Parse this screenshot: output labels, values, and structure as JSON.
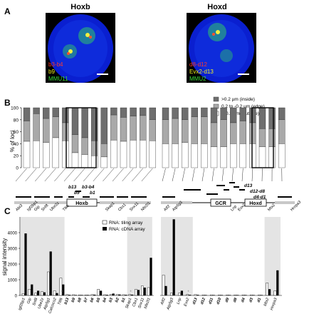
{
  "panel_a": {
    "label": "A",
    "left": {
      "title": "Hoxb",
      "probe1": "b3-b4",
      "probe2": "b9",
      "probe3": "MMU11",
      "colors": {
        "probe1": "#ff3b2a",
        "probe2": "#f2f020",
        "probe3": "#3cdc3c"
      }
    },
    "right": {
      "title": "Hoxd",
      "probe1": "d8-d12",
      "probe2": "Evx2-d13",
      "probe3": "MMU2",
      "colors": {
        "probe1": "#ff3b2a",
        "probe2": "#f2f020",
        "probe3": "#3cdc3c"
      }
    }
  },
  "panel_b": {
    "label": "B",
    "ylabel": "% of loci",
    "ticks": [
      "0",
      "20",
      "40",
      "60",
      "80",
      "100"
    ],
    "legend": [
      ">0.2 µm (inside)",
      "0.2 to -0.2 µm (edge)",
      "<-0.2 µm (outside)"
    ],
    "colors": {
      "inside": "#6e6e6e",
      "edge": "#a9a9a9",
      "outside": "#ffffff"
    },
    "left_stacks": [
      [
        22,
        34,
        44
      ],
      [
        10,
        45,
        45
      ],
      [
        18,
        40,
        42
      ],
      [
        15,
        35,
        50
      ],
      [
        25,
        30,
        45
      ],
      [
        45,
        30,
        25
      ],
      [
        50,
        28,
        22
      ],
      [
        55,
        25,
        20
      ],
      [
        60,
        22,
        18
      ],
      [
        12,
        42,
        46
      ],
      [
        16,
        40,
        44
      ],
      [
        14,
        40,
        46
      ],
      [
        13,
        41,
        46
      ],
      [
        20,
        35,
        45
      ]
    ],
    "right_stacks": [
      [
        20,
        40,
        40
      ],
      [
        18,
        42,
        40
      ],
      [
        20,
        38,
        42
      ],
      [
        15,
        45,
        40
      ],
      [
        15,
        45,
        40
      ],
      [
        25,
        40,
        35
      ],
      [
        20,
        45,
        35
      ],
      [
        25,
        35,
        40
      ],
      [
        22,
        38,
        40
      ],
      [
        25,
        35,
        40
      ],
      [
        35,
        30,
        35
      ],
      [
        35,
        30,
        35
      ],
      [
        20,
        40,
        40
      ]
    ],
    "left_probes": [
      "b13",
      "b9",
      "b3-b4",
      "b1"
    ],
    "right_probes": [
      "d13",
      "d12-d8",
      "d4-d1"
    ]
  },
  "panel_c": {
    "label": "C",
    "ylabel": "signal intensity",
    "ticks": [
      "0",
      "1000",
      "2000",
      "3000",
      "4000"
    ],
    "legend": [
      "RNA: tiling array",
      "RNA: cDNA array"
    ],
    "colors": {
      "tiling": "#ffffff",
      "cdna": "#000000",
      "shade": "#e4e4e4"
    },
    "left_gene_map": [
      "Abi3",
      "Igf2bp1",
      "Gip",
      "Snf8",
      "Ube2z",
      "Hoxb",
      "Tlk6",
      "Skap1",
      "Cbx1",
      "Snx11",
      "Nfe2l1"
    ],
    "right_gene_map": [
      "Atf2",
      "Atp5g3",
      "GCR",
      "Lnp",
      "Evx2",
      "Hoxd",
      "Mtx2",
      "Hnrpa3"
    ],
    "left_genes": [
      "Igf2bp1",
      "Gip",
      "Snf8",
      "Ube2z",
      "Atp5g1",
      "Calcoco2",
      "Ttll6",
      "b13",
      "b9",
      "b8",
      "b7",
      "b6",
      "b5",
      "b4",
      "b3",
      "b2",
      "b1",
      "Skap1",
      "Cbx1",
      "Snx11",
      "Nfe2l1"
    ],
    "left_tiling": [
      120,
      400,
      150,
      250,
      1500,
      300,
      1100,
      60,
      50,
      40,
      40,
      60,
      400,
      50,
      80,
      60,
      50,
      60,
      400,
      600,
      500
    ],
    "left_cdna": [
      3950,
      700,
      300,
      200,
      2800,
      150,
      700,
      40,
      30,
      30,
      30,
      50,
      300,
      40,
      120,
      60,
      40,
      50,
      350,
      500,
      2400
    ],
    "right_genes": [
      "Atf2",
      "Atp5g3",
      "Lnp",
      "Evx2",
      "d13",
      "d12",
      "d11",
      "d10",
      "d9",
      "d8",
      "d4",
      "d3",
      "d1",
      "Mtx2",
      "Hnrpa3"
    ],
    "right_tiling": [
      1300,
      150,
      150,
      60,
      60,
      40,
      40,
      40,
      40,
      40,
      40,
      40,
      40,
      800,
      300
    ],
    "right_cdna": [
      600,
      4850,
      300,
      40,
      40,
      30,
      30,
      30,
      30,
      30,
      30,
      30,
      30,
      400,
      1600
    ],
    "asterisk": "*"
  }
}
